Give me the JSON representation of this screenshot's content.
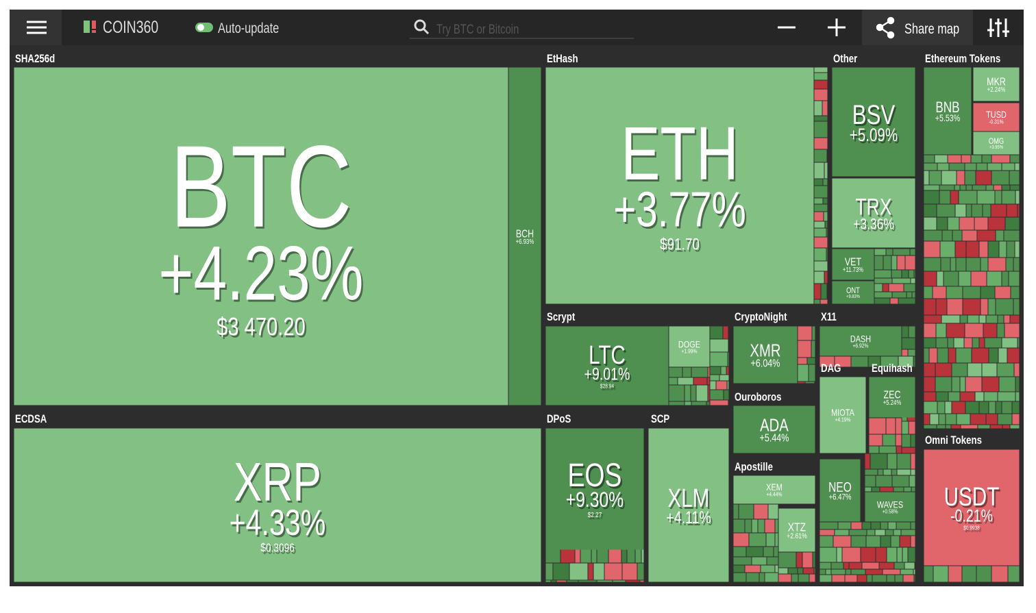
{
  "header": {
    "brand": "COIN360",
    "auto_update": "Auto-update",
    "search_placeholder": "Try BTC or Bitcoin",
    "share": "Share map"
  },
  "groups": [
    "SHA256d",
    "ECDSA",
    "EtHash",
    "Other",
    "Ethereum Tokens",
    "Scrypt",
    "CryptoNight",
    "X11",
    "DAG",
    "Equihash",
    "Ouroboros",
    "Apostille",
    "DPoS",
    "SCP",
    "Omni Tokens"
  ],
  "tiles": [
    {
      "symbol": "BTC",
      "change": "+4.23%",
      "price": "$3 470.20"
    },
    {
      "symbol": "BCH",
      "change": "+6.93%"
    },
    {
      "symbol": "XRP",
      "change": "+4.33%",
      "price": "$0.3096"
    },
    {
      "symbol": "ETH",
      "change": "+3.77%",
      "price": "$91.70"
    },
    {
      "symbol": "BSV",
      "change": "+5.09%"
    },
    {
      "symbol": "TRX",
      "change": "+3.36%"
    },
    {
      "symbol": "VET",
      "change": "+11.73%"
    },
    {
      "symbol": "ONT",
      "change": "+9.83%"
    },
    {
      "symbol": "BNB",
      "change": "+5.53%"
    },
    {
      "symbol": "MKR",
      "change": "+2.24%"
    },
    {
      "symbol": "TUSD",
      "change": "-0.31%"
    },
    {
      "symbol": "OMG",
      "change": "+3.95%"
    },
    {
      "symbol": "LTC",
      "change": "+9.01%",
      "price": "$28.94"
    },
    {
      "symbol": "DOGE",
      "change": "+1.99%"
    },
    {
      "symbol": "XMR",
      "change": "+6.04%"
    },
    {
      "symbol": "DASH",
      "change": "+6.92%"
    },
    {
      "symbol": "MIOTA",
      "change": "+4.19%"
    },
    {
      "symbol": "ZEC",
      "change": "+5.24%"
    },
    {
      "symbol": "ADA",
      "change": "+5.44%"
    },
    {
      "symbol": "XEM",
      "change": "+4.44%"
    },
    {
      "symbol": "EOS",
      "change": "+9.30%",
      "price": "$2.27"
    },
    {
      "symbol": "XLM",
      "change": "+4.11%"
    },
    {
      "symbol": "NEO",
      "change": "+6.47%"
    },
    {
      "symbol": "WAVES",
      "change": "+0.58%"
    },
    {
      "symbol": "XTZ",
      "change": "+2.61%"
    },
    {
      "symbol": "USDT",
      "change": "-0.21%",
      "price": "$0.9938"
    }
  ]
}
